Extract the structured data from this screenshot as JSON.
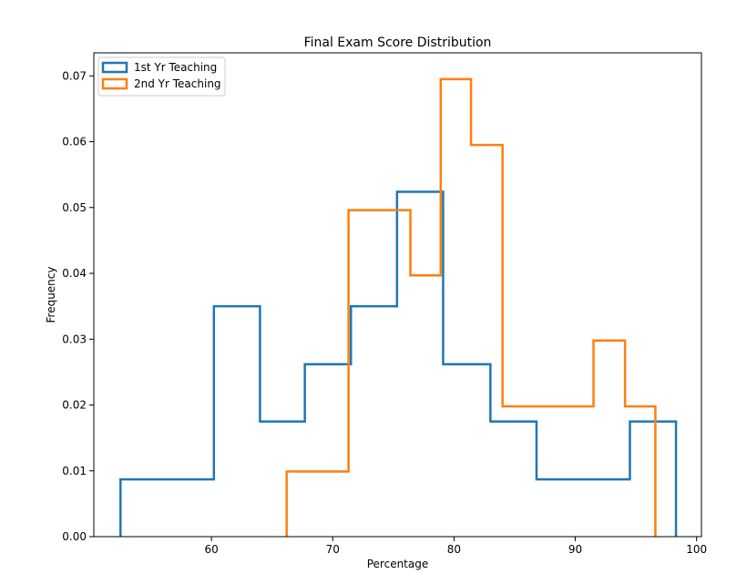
{
  "chart_data": {
    "type": "histogram",
    "title": "Final Exam Score Distribution",
    "xlabel": "Percentage",
    "ylabel": "Frequency",
    "xlim": [
      50.3,
      100.4
    ],
    "ylim": [
      0.0,
      0.0735
    ],
    "xticks": [
      60,
      70,
      80,
      90,
      100
    ],
    "yticks": [
      0.0,
      0.01,
      0.02,
      0.03,
      0.04,
      0.05,
      0.06,
      0.07
    ],
    "ytick_format_decimals": 2,
    "grid": false,
    "legend_position": "top-left",
    "series": [
      {
        "name": "1st Yr Teaching",
        "color": "#1f77b4",
        "histtype": "step",
        "bin_edges": [
          52.5,
          60.2,
          64.0,
          67.7,
          71.5,
          75.3,
          79.1,
          83.0,
          86.8,
          90.6,
          94.5,
          98.3
        ],
        "values": [
          0.0087,
          0.035,
          0.0175,
          0.0262,
          0.035,
          0.0524,
          0.0262,
          0.0175,
          0.0087,
          0.0087,
          0.0175
        ]
      },
      {
        "name": "2nd Yr Teaching",
        "color": "#ff7f0e",
        "histtype": "step",
        "bin_edges": [
          66.2,
          71.3,
          76.4,
          78.9,
          81.4,
          84.0,
          86.5,
          89.0,
          91.5,
          94.1,
          96.6
        ],
        "values": [
          0.0099,
          0.0496,
          0.0397,
          0.0695,
          0.0595,
          0.0198,
          0.0198,
          0.0198,
          0.0298,
          0.0198
        ]
      }
    ]
  }
}
